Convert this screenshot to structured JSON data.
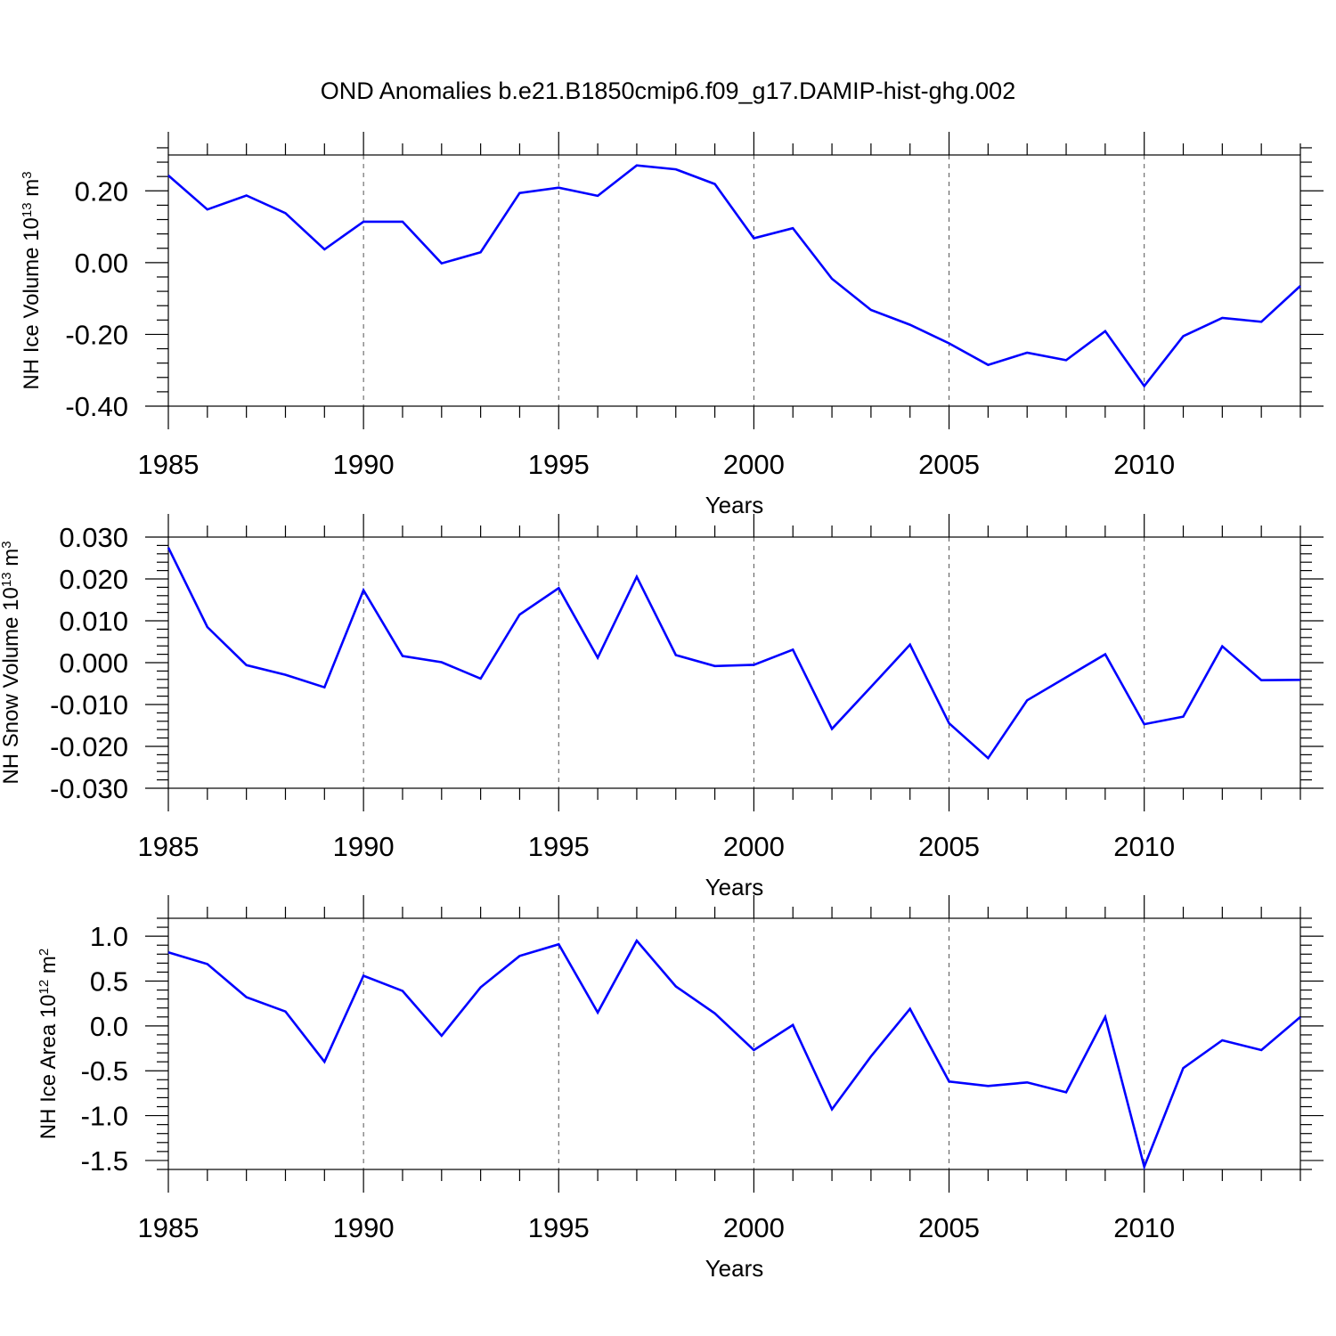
{
  "title": "OND Anomalies b.e21.B1850cmip6.f09_g17.DAMIP-hist-ghg.002",
  "colors": {
    "series": "#0000ff",
    "axis": "#000000",
    "grid": "#555555"
  },
  "chart_data": [
    {
      "type": "line",
      "name": "ice-volume",
      "ylabel": {
        "text": "NH Ice Volume 10",
        "sup": "13",
        "unit": " m",
        "unit_sup": "3"
      },
      "xlabel": "Years",
      "xlim": [
        1985,
        2014
      ],
      "ylim": [
        -0.4,
        0.3
      ],
      "x_ticks": [
        1985,
        1990,
        1995,
        2000,
        2005,
        2010
      ],
      "x_tick_labels": [
        "1985",
        "1990",
        "1995",
        "2000",
        "2005",
        "2010"
      ],
      "y_ticks": [
        0.2,
        0.0,
        -0.2,
        -0.4
      ],
      "y_tick_labels": [
        "0.20",
        "0.00",
        "-0.20",
        "-0.40"
      ],
      "y_minor_step": 0.04,
      "x": [
        1985,
        1986,
        1987,
        1988,
        1989,
        1990,
        1991,
        1992,
        1993,
        1994,
        1995,
        1996,
        1997,
        1998,
        1999,
        2000,
        2001,
        2002,
        2003,
        2004,
        2005,
        2006,
        2007,
        2008,
        2009,
        2010,
        2011,
        2012,
        2013,
        2014
      ],
      "values": [
        0.243,
        0.148,
        0.187,
        0.138,
        0.037,
        0.114,
        0.114,
        -0.002,
        0.029,
        0.194,
        0.209,
        0.186,
        0.271,
        0.26,
        0.219,
        0.068,
        0.096,
        -0.045,
        -0.132,
        -0.173,
        -0.225,
        -0.285,
        -0.251,
        -0.272,
        -0.191,
        -0.344,
        -0.205,
        -0.154,
        -0.165,
        -0.065
      ]
    },
    {
      "type": "line",
      "name": "snow-volume",
      "ylabel": {
        "text": "NH Snow Volume 10",
        "sup": "13",
        "unit": " m",
        "unit_sup": "3"
      },
      "xlabel": "Years",
      "xlim": [
        1985,
        2014
      ],
      "ylim": [
        -0.03,
        0.03
      ],
      "x_ticks": [
        1985,
        1990,
        1995,
        2000,
        2005,
        2010
      ],
      "x_tick_labels": [
        "1985",
        "1990",
        "1995",
        "2000",
        "2005",
        "2010"
      ],
      "y_ticks": [
        0.03,
        0.02,
        0.01,
        0.0,
        -0.01,
        -0.02,
        -0.03
      ],
      "y_tick_labels": [
        "0.030",
        "0.020",
        "0.010",
        "0.000",
        "-0.010",
        "-0.020",
        "-0.030"
      ],
      "y_minor_step": 0.002,
      "x": [
        1985,
        1986,
        1987,
        1988,
        1989,
        1990,
        1991,
        1992,
        1993,
        1994,
        1995,
        1996,
        1997,
        1998,
        1999,
        2000,
        2001,
        2002,
        2003,
        2004,
        2005,
        2006,
        2007,
        2008,
        2009,
        2010,
        2011,
        2012,
        2013,
        2014
      ],
      "values": [
        0.0275,
        0.0085,
        -0.0006,
        -0.0029,
        -0.0059,
        0.0173,
        0.0016,
        0.0001,
        -0.0038,
        0.0115,
        0.0178,
        0.0012,
        0.0205,
        0.0018,
        -0.0008,
        -0.0005,
        0.0031,
        -0.0158,
        -0.0058,
        0.0043,
        -0.0145,
        -0.0228,
        -0.009,
        -0.0035,
        0.002,
        -0.0147,
        -0.0129,
        0.0039,
        -0.0042,
        -0.0041
      ]
    },
    {
      "type": "line",
      "name": "ice-area",
      "ylabel": {
        "text": "NH Ice Area 10",
        "sup": "12",
        "unit": " m",
        "unit_sup": "2"
      },
      "xlabel": "Years",
      "xlim": [
        1985,
        2014
      ],
      "ylim": [
        -1.6,
        1.2
      ],
      "x_ticks": [
        1985,
        1990,
        1995,
        2000,
        2005,
        2010
      ],
      "x_tick_labels": [
        "1985",
        "1990",
        "1995",
        "2000",
        "2005",
        "2010"
      ],
      "y_ticks": [
        1.0,
        0.5,
        0.0,
        -0.5,
        -1.0,
        -1.5
      ],
      "y_tick_labels": [
        "1.0",
        "0.5",
        "0.0",
        "-0.5",
        "-1.0",
        "-1.5"
      ],
      "y_minor_step": 0.1,
      "x": [
        1985,
        1986,
        1987,
        1988,
        1989,
        1990,
        1991,
        1992,
        1993,
        1994,
        1995,
        1996,
        1997,
        1998,
        1999,
        2000,
        2001,
        2002,
        2003,
        2004,
        2005,
        2006,
        2007,
        2008,
        2009,
        2010,
        2011,
        2012,
        2013,
        2014
      ],
      "values": [
        0.82,
        0.69,
        0.32,
        0.16,
        -0.4,
        0.56,
        0.39,
        -0.11,
        0.43,
        0.78,
        0.91,
        0.15,
        0.95,
        0.44,
        0.14,
        -0.27,
        0.01,
        -0.93,
        -0.34,
        0.19,
        -0.62,
        -0.67,
        -0.63,
        -0.74,
        0.1,
        -1.57,
        -0.47,
        -0.16,
        -0.27,
        0.1
      ]
    }
  ]
}
